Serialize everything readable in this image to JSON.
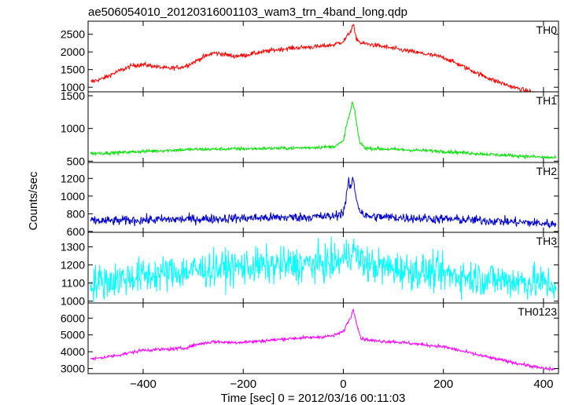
{
  "chart_data": {
    "type": "line",
    "title": "ae506054010_20120316001103_wam3_trn_4band_long.qdp",
    "xlabel": "Time [sec] 0 = 2012/03/16 00:11:03",
    "ylabel": "Counts/sec",
    "xlim": [
      -510,
      430
    ],
    "x_ticks": [
      -400,
      -200,
      0,
      200,
      400
    ],
    "x_tick_labels": [
      "−400",
      "−200",
      "0",
      "200",
      "400"
    ],
    "grid": false,
    "panels": [
      {
        "name": "TH0",
        "color": "#ff0000",
        "ylim": [
          870,
          2870
        ],
        "y_ticks": [
          1000,
          1500,
          2000,
          2500
        ],
        "y_tick_labels": [
          "1000",
          "1500",
          "2000",
          "2500"
        ],
        "noise": 45,
        "points": [
          [
            -505,
            1150
          ],
          [
            -480,
            1250
          ],
          [
            -450,
            1450
          ],
          [
            -420,
            1620
          ],
          [
            -400,
            1640
          ],
          [
            -380,
            1600
          ],
          [
            -350,
            1530
          ],
          [
            -320,
            1580
          ],
          [
            -300,
            1700
          ],
          [
            -280,
            1850
          ],
          [
            -260,
            1970
          ],
          [
            -240,
            1940
          ],
          [
            -220,
            1880
          ],
          [
            -200,
            1900
          ],
          [
            -170,
            1980
          ],
          [
            -140,
            2050
          ],
          [
            -110,
            2100
          ],
          [
            -80,
            2130
          ],
          [
            -50,
            2150
          ],
          [
            -20,
            2200
          ],
          [
            0,
            2300
          ],
          [
            8,
            2450
          ],
          [
            15,
            2600
          ],
          [
            20,
            2780
          ],
          [
            25,
            2400
          ],
          [
            35,
            2250
          ],
          [
            60,
            2200
          ],
          [
            100,
            2100
          ],
          [
            140,
            2000
          ],
          [
            180,
            1900
          ],
          [
            200,
            1850
          ],
          [
            230,
            1650
          ],
          [
            260,
            1450
          ],
          [
            300,
            1200
          ],
          [
            340,
            1000
          ],
          [
            380,
            850
          ],
          [
            410,
            720
          ],
          [
            425,
            680
          ]
        ]
      },
      {
        "name": "TH1",
        "color": "#00e000",
        "ylim": [
          480,
          1560
        ],
        "y_ticks": [
          500,
          1000,
          1500
        ],
        "y_tick_labels": [
          "500",
          "1000",
          "1500"
        ],
        "noise": 18,
        "points": [
          [
            -505,
            620
          ],
          [
            -450,
            630
          ],
          [
            -400,
            650
          ],
          [
            -300,
            680
          ],
          [
            -200,
            690
          ],
          [
            -100,
            700
          ],
          [
            -20,
            720
          ],
          [
            0,
            800
          ],
          [
            5,
            1000
          ],
          [
            10,
            1150
          ],
          [
            14,
            1250
          ],
          [
            18,
            1400
          ],
          [
            22,
            1300
          ],
          [
            27,
            1050
          ],
          [
            33,
            780
          ],
          [
            45,
            700
          ],
          [
            100,
            680
          ],
          [
            200,
            650
          ],
          [
            300,
            600
          ],
          [
            400,
            560
          ],
          [
            425,
            550
          ]
        ]
      },
      {
        "name": "TH2",
        "color": "#0000cc",
        "ylim": [
          590,
          1380
        ],
        "y_ticks": [
          600,
          800,
          1000,
          1200
        ],
        "y_tick_labels": [
          "600",
          "800",
          "1000",
          "1200"
        ],
        "noise": 38,
        "points": [
          [
            -505,
            720
          ],
          [
            -450,
            720
          ],
          [
            -400,
            730
          ],
          [
            -300,
            740
          ],
          [
            -200,
            750
          ],
          [
            -100,
            760
          ],
          [
            -20,
            770
          ],
          [
            0,
            820
          ],
          [
            5,
            950
          ],
          [
            10,
            1150
          ],
          [
            15,
            1100
          ],
          [
            20,
            1200
          ],
          [
            25,
            1000
          ],
          [
            32,
            850
          ],
          [
            45,
            770
          ],
          [
            100,
            760
          ],
          [
            200,
            740
          ],
          [
            300,
            720
          ],
          [
            400,
            690
          ],
          [
            425,
            680
          ]
        ]
      },
      {
        "name": "TH3",
        "color": "#00ffff",
        "ylim": [
          990,
          1380
        ],
        "y_ticks": [
          1000,
          1100,
          1200,
          1300
        ],
        "y_tick_labels": [
          "1000",
          "1100",
          "1200",
          "1300"
        ],
        "noise": 70,
        "points": [
          [
            -505,
            1100
          ],
          [
            -400,
            1140
          ],
          [
            -300,
            1170
          ],
          [
            -200,
            1190
          ],
          [
            -100,
            1200
          ],
          [
            -20,
            1210
          ],
          [
            0,
            1230
          ],
          [
            10,
            1260
          ],
          [
            18,
            1290
          ],
          [
            28,
            1240
          ],
          [
            50,
            1200
          ],
          [
            100,
            1180
          ],
          [
            200,
            1150
          ],
          [
            300,
            1120
          ],
          [
            400,
            1100
          ],
          [
            425,
            1090
          ]
        ]
      },
      {
        "name": "TH0123",
        "color": "#ff00ff",
        "ylim": [
          2700,
          6900
        ],
        "y_ticks": [
          3000,
          4000,
          5000,
          6000
        ],
        "y_tick_labels": [
          "3000",
          "4000",
          "5000",
          "6000"
        ],
        "noise": 70,
        "points": [
          [
            -505,
            3550
          ],
          [
            -450,
            3800
          ],
          [
            -400,
            4100
          ],
          [
            -350,
            4150
          ],
          [
            -320,
            4200
          ],
          [
            -290,
            4450
          ],
          [
            -260,
            4600
          ],
          [
            -220,
            4550
          ],
          [
            -180,
            4600
          ],
          [
            -140,
            4700
          ],
          [
            -100,
            4800
          ],
          [
            -60,
            4850
          ],
          [
            -20,
            4950
          ],
          [
            0,
            5200
          ],
          [
            8,
            5700
          ],
          [
            14,
            6000
          ],
          [
            20,
            6500
          ],
          [
            26,
            5800
          ],
          [
            35,
            4800
          ],
          [
            60,
            4650
          ],
          [
            100,
            4600
          ],
          [
            150,
            4450
          ],
          [
            200,
            4300
          ],
          [
            250,
            3950
          ],
          [
            300,
            3600
          ],
          [
            350,
            3300
          ],
          [
            400,
            3000
          ],
          [
            425,
            2950
          ]
        ]
      }
    ]
  }
}
